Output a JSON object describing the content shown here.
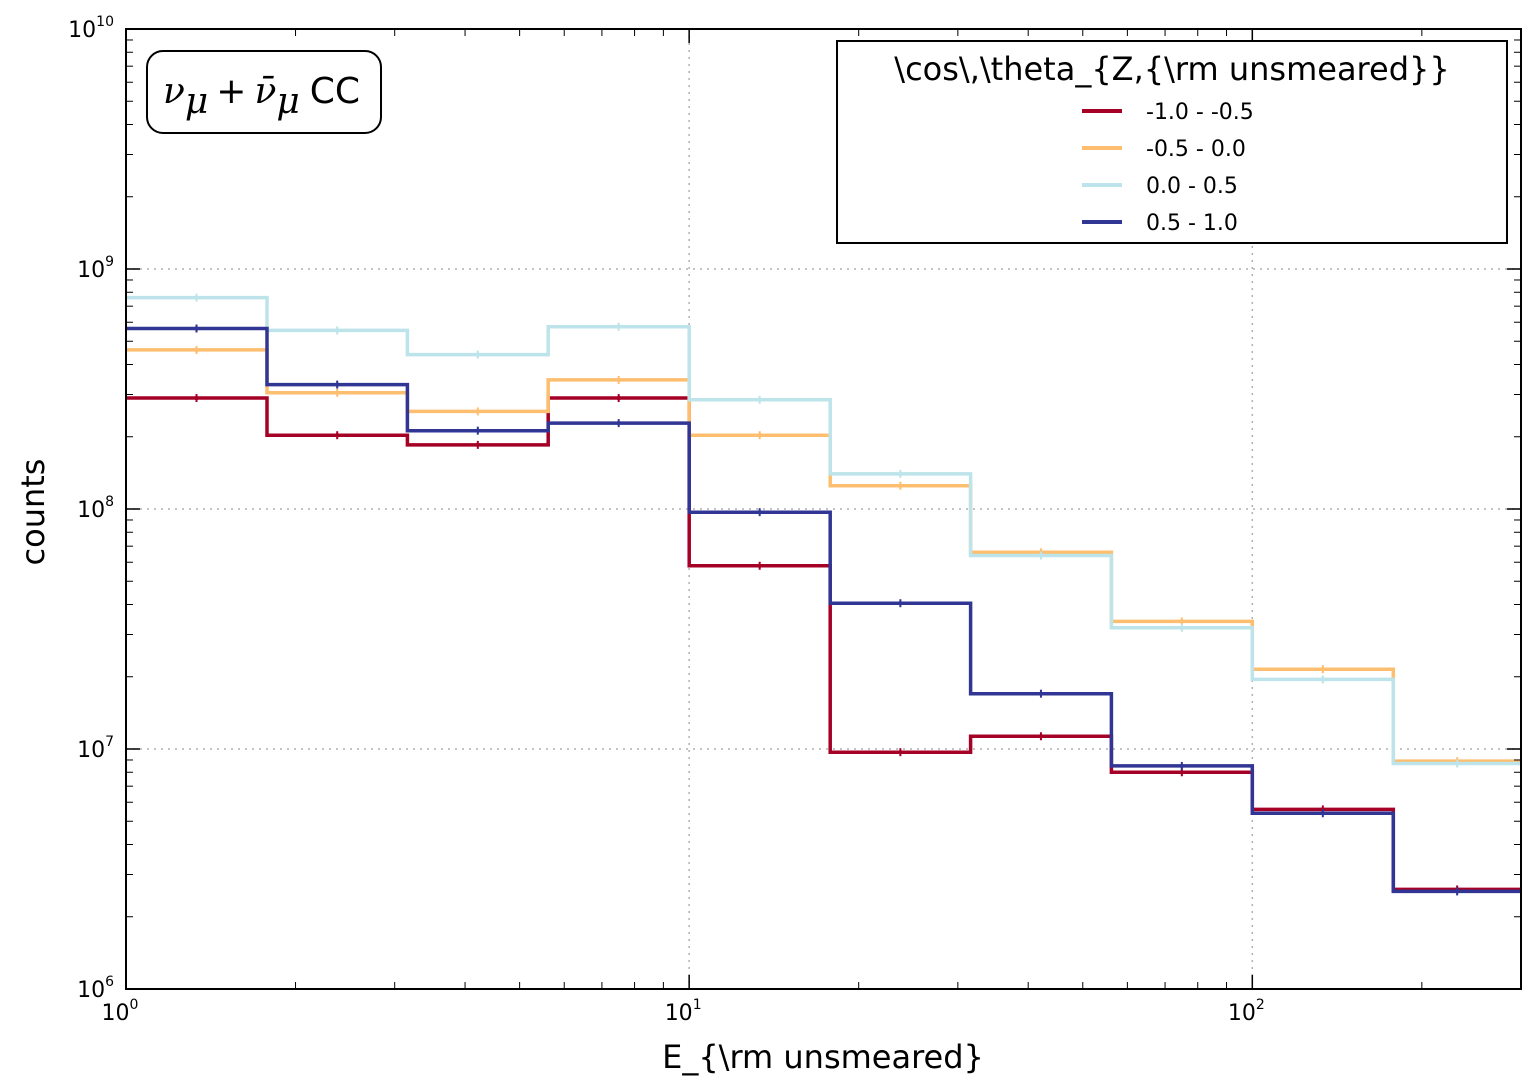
{
  "chart_data": {
    "type": "line",
    "title": "",
    "xlabel": "E_{\\rm unsmeared}",
    "ylabel": "counts",
    "xscale": "log",
    "yscale": "log",
    "xlim": [
      1,
      300
    ],
    "ylim": [
      1000000,
      10000000000
    ],
    "grid": true,
    "step": true,
    "x_ticks": [
      {
        "base": "10",
        "exp": "0",
        "value": 1
      },
      {
        "base": "10",
        "exp": "1",
        "value": 10
      },
      {
        "base": "10",
        "exp": "2",
        "value": 100
      }
    ],
    "y_ticks": [
      {
        "base": "10",
        "exp": "6",
        "value": 1000000
      },
      {
        "base": "10",
        "exp": "7",
        "value": 10000000
      },
      {
        "base": "10",
        "exp": "8",
        "value": 100000000
      },
      {
        "base": "10",
        "exp": "9",
        "value": 1000000000
      },
      {
        "base": "10",
        "exp": "10",
        "value": 10000000000
      }
    ],
    "bin_edges": [
      1.0,
      1.78,
      3.16,
      5.62,
      10.0,
      17.8,
      31.6,
      56.2,
      100.0,
      178.0,
      300.0
    ],
    "series": [
      {
        "name": "-1.0 - -0.5",
        "color": "#a50026",
        "values": [
          290000000,
          203000000,
          185000000,
          290000000,
          58000000,
          9700000,
          11300000,
          8000000,
          5600000,
          2600000
        ]
      },
      {
        "name": "-0.5 - 0.0",
        "color": "#fdbf6f",
        "values": [
          460000000,
          305000000,
          255000000,
          345000000,
          203000000,
          125000000,
          66000000,
          34000000,
          21500000,
          8900000
        ]
      },
      {
        "name": "0.0 - 0.5",
        "color": "#bde4ea",
        "values": [
          760000000,
          555000000,
          440000000,
          575000000,
          285000000,
          140000000,
          64000000,
          32000000,
          19500000,
          8700000
        ]
      },
      {
        "name": "0.5 - 1.0",
        "color": "#313695",
        "values": [
          565000000,
          330000000,
          212000000,
          228000000,
          97000000,
          40500000,
          17000000,
          8500000,
          5400000,
          2550000
        ]
      }
    ],
    "legend": {
      "title": "\\cos\\,\\theta_{Z,{\\rm unsmeared}}",
      "placement": "top-right"
    },
    "annotation": {
      "nu": "ν",
      "sub": "μ",
      "plus": "+",
      "nubar": "ν̄",
      "sub2": "μ",
      "suffix": "CC",
      "placement": "top-left"
    }
  }
}
